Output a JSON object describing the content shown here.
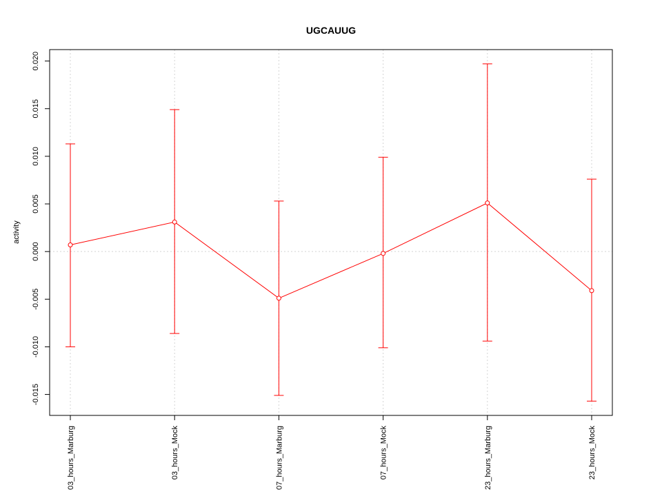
{
  "chart_data": {
    "type": "line",
    "title": "UGCAUUG",
    "xlabel": "",
    "ylabel": "activity",
    "categories": [
      "03_hours_Marburg",
      "03_hours_Mock",
      "07_hours_Marburg",
      "07_hours_Mock",
      "23_hours_Marburg",
      "23_hours_Mock"
    ],
    "series": [
      {
        "values": [
          0.0007,
          0.0031,
          -0.0049,
          -0.0002,
          0.0051,
          -0.0041
        ],
        "lower": [
          -0.01,
          -0.0086,
          -0.0151,
          -0.0101,
          -0.0094,
          -0.0157
        ],
        "upper": [
          0.0113,
          0.0149,
          0.0053,
          0.0099,
          0.0197,
          0.0076
        ],
        "color": "#ff0000"
      }
    ],
    "yticks": [
      "-0.015",
      "-0.010",
      "-0.005",
      "0.000",
      "0.005",
      "0.010",
      "0.015",
      "0.020"
    ],
    "ylim": [
      -0.0172,
      0.0212
    ],
    "grid": true,
    "colors": {
      "series": "#ff0000",
      "grid": "#d3d3d3",
      "axis": "#000000"
    }
  }
}
